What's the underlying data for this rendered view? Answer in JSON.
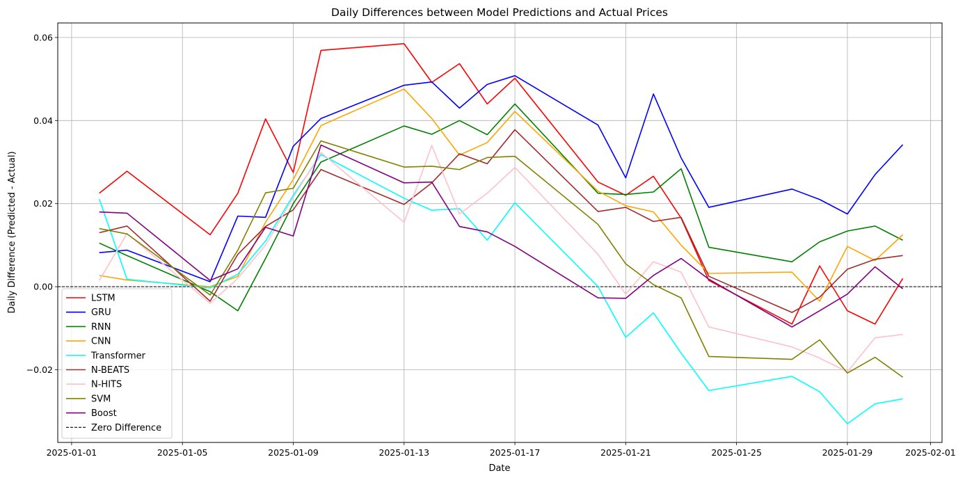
{
  "chart_data": {
    "type": "line",
    "title": "Daily Differences between Model Predictions and Actual Prices",
    "xlabel": "Date",
    "ylabel": "Daily Difference (Predicted - Actual)",
    "xlim": [
      "2024-12-31T12:00",
      "2025-02-01T10:00"
    ],
    "ylim": [
      -0.0375,
      0.0635
    ],
    "x_ticks": [
      "2025-01-01",
      "2025-01-05",
      "2025-01-09",
      "2025-01-13",
      "2025-01-17",
      "2025-01-21",
      "2025-01-25",
      "2025-01-29",
      "2025-02-01"
    ],
    "y_ticks": [
      -0.02,
      0.0,
      0.02,
      0.04,
      0.06
    ],
    "y_tick_labels": [
      "−0.02",
      "0.00",
      "0.02",
      "0.04",
      "0.06"
    ],
    "grid": true,
    "legend_position": "lower-left",
    "x": [
      "2025-01-02",
      "2025-01-03",
      "2025-01-06",
      "2025-01-07",
      "2025-01-08",
      "2025-01-09",
      "2025-01-10",
      "2025-01-13",
      "2025-01-14",
      "2025-01-15",
      "2025-01-16",
      "2025-01-17",
      "2025-01-20",
      "2025-01-21",
      "2025-01-22",
      "2025-01-23",
      "2025-01-24",
      "2025-01-27",
      "2025-01-28",
      "2025-01-29",
      "2025-01-30",
      "2025-01-31"
    ],
    "series": [
      {
        "name": "LSTM",
        "color": "#ff0000",
        "values": [
          0.0225,
          0.0278,
          0.0125,
          0.0225,
          0.0404,
          0.0275,
          0.0569,
          0.0585,
          0.0492,
          0.0537,
          0.044,
          0.0502,
          0.0252,
          0.022,
          0.0266,
          0.0165,
          0.0015,
          -0.009,
          0.005,
          -0.0058,
          -0.009,
          0.002
        ]
      },
      {
        "name": "GRU",
        "color": "#0000ff",
        "values": [
          0.0082,
          0.0088,
          0.0012,
          0.017,
          0.0167,
          0.0338,
          0.0405,
          0.0485,
          0.0493,
          0.043,
          0.0487,
          0.0508,
          0.0389,
          0.0262,
          0.0464,
          0.031,
          0.0191,
          0.0235,
          0.021,
          0.0175,
          0.027,
          0.0342
        ]
      },
      {
        "name": "RNN",
        "color": "#008000",
        "values": [
          0.0105,
          0.0075,
          -0.0012,
          -0.0058,
          0.0068,
          0.02,
          0.03,
          0.0387,
          0.0367,
          0.04,
          0.0366,
          0.044,
          0.0225,
          0.0222,
          0.0228,
          0.0284,
          0.0095,
          0.006,
          0.0108,
          0.0134,
          0.0146,
          0.0112
        ]
      },
      {
        "name": "CNN",
        "color": "#ffa500",
        "values": [
          0.0027,
          0.0016,
          0.0,
          0.0025,
          0.0155,
          0.0258,
          0.0388,
          0.0476,
          0.0405,
          0.0317,
          0.0347,
          0.0422,
          0.023,
          0.0195,
          0.018,
          0.01,
          0.0032,
          0.0035,
          -0.0035,
          0.0097,
          0.0063,
          0.0125
        ]
      },
      {
        "name": "Transformer",
        "color": "#00ffff",
        "values": [
          0.0211,
          0.0018,
          -0.0003,
          0.003,
          0.011,
          0.022,
          0.0318,
          0.0213,
          0.0184,
          0.0188,
          0.0112,
          0.0202,
          0.0,
          -0.0122,
          -0.0063,
          -0.016,
          -0.025,
          -0.0216,
          -0.0253,
          -0.033,
          -0.0282,
          -0.027
        ]
      },
      {
        "name": "N-BEATS",
        "color": "#a52a2a",
        "values": [
          0.013,
          0.0146,
          -0.0035,
          0.0078,
          0.0145,
          0.0185,
          0.0282,
          0.0198,
          0.025,
          0.032,
          0.0296,
          0.0378,
          0.0181,
          0.0191,
          0.0157,
          0.0167,
          0.0025,
          -0.0062,
          -0.0025,
          0.0042,
          0.0066,
          0.0075
        ]
      },
      {
        "name": "N-HITS",
        "color": "#ffc0cb",
        "values": [
          0.0015,
          0.0128,
          -0.004,
          0.002,
          0.01,
          0.0215,
          0.0323,
          0.0155,
          0.034,
          0.0175,
          0.0225,
          0.0287,
          0.0078,
          -0.0018,
          0.006,
          0.0035,
          -0.0097,
          -0.0145,
          -0.0172,
          -0.0205,
          -0.0123,
          -0.0115
        ]
      },
      {
        "name": "SVM",
        "color": "#808000",
        "values": [
          0.014,
          0.0127,
          -0.002,
          0.0088,
          0.0226,
          0.0237,
          0.0351,
          0.0288,
          0.029,
          0.0282,
          0.0311,
          0.0314,
          0.015,
          0.0055,
          0.0005,
          -0.0027,
          -0.0168,
          -0.0175,
          -0.0128,
          -0.0208,
          -0.017,
          -0.0218
        ]
      },
      {
        "name": "Boost",
        "color": "#800080",
        "values": [
          0.018,
          0.0177,
          0.0015,
          0.0043,
          0.0143,
          0.0122,
          0.0341,
          0.025,
          0.0252,
          0.0145,
          0.0132,
          0.0097,
          -0.0027,
          -0.0028,
          0.0027,
          0.0068,
          0.0018,
          -0.0097,
          -0.0058,
          -0.0018,
          0.0048,
          -0.0005
        ]
      }
    ],
    "reference_line": {
      "name": "Zero Difference",
      "y": 0,
      "color": "#000000",
      "style": "dashed"
    }
  }
}
